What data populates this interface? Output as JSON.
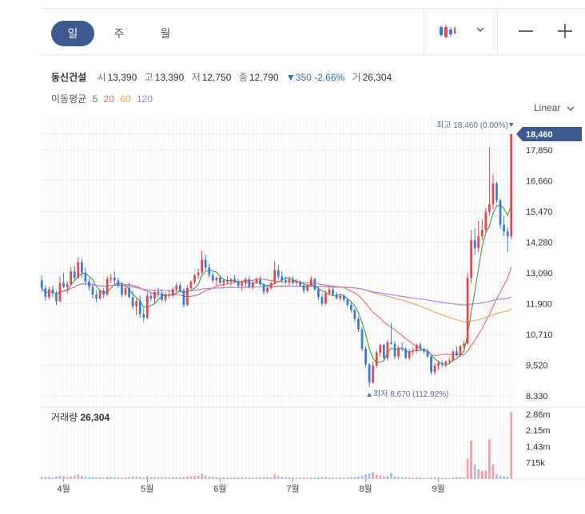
{
  "tabs": [
    {
      "label": "일"
    },
    {
      "label": "주"
    },
    {
      "label": "월"
    }
  ],
  "stock": {
    "name": "동신건설",
    "open_label": "시",
    "open": "13,390",
    "high_label": "고",
    "high": "13,390",
    "low_label": "저",
    "low": "12,750",
    "close_label": "종",
    "close": "12,790",
    "change": "▼350",
    "change_pct": "-2.66%",
    "volume_label": "거",
    "volume": "26,304"
  },
  "ma": {
    "label": "이동평균",
    "p5": "5",
    "p20": "20",
    "p60": "60",
    "p120": "120"
  },
  "scale_mode": "Linear",
  "volume_panel": {
    "title": "거래량",
    "value": "26,304"
  },
  "colors": {
    "up": "#e4464b",
    "down": "#3b7ad8",
    "ma5": "#3ea33e",
    "ma20": "#ee6a6a",
    "ma60": "#f0a55a",
    "ma120": "#a77ef2",
    "accent": "#3d5a8f",
    "last_price_bg": "#3d5a8f"
  },
  "icons": {
    "chart_type": "candle-icon",
    "dropdown": "chevron-down-icon",
    "zoom_out": "minus-icon",
    "zoom_in": "plus-icon"
  },
  "chart_data": {
    "type": "candlestick",
    "price_axis": {
      "ticks": [
        18460,
        17850,
        16660,
        15470,
        14280,
        13090,
        11900,
        10710,
        9520,
        8330
      ],
      "tick_labels": [
        "18,460",
        "17,850",
        "16,660",
        "15,470",
        "14,280",
        "13,090",
        "11,900",
        "10,710",
        "9,520",
        "8,330"
      ],
      "range": [
        8330,
        18460
      ]
    },
    "volume_axis": {
      "tick_labels": [
        "2.86m",
        "2.15m",
        "1.43m",
        "715k"
      ],
      "ticks": [
        2860000,
        2150000,
        1430000,
        715000
      ],
      "max": 3000000
    },
    "month_labels": [
      "4월",
      "5월",
      "6월",
      "7월",
      "8월",
      "9월"
    ],
    "month_start_index": [
      6,
      29,
      49,
      69,
      89,
      109
    ],
    "last_price_label": "18,460",
    "last_price": 18460,
    "max_annotation": "최고 18,460 (0.00%)",
    "min_annotation": "최저 8,670 (112.92%)",
    "max_price": 18460,
    "min_price": 8670,
    "grid": true,
    "ohlc": [
      [
        12800,
        13000,
        12350,
        12500
      ],
      [
        12500,
        12600,
        12000,
        12150
      ],
      [
        12150,
        12550,
        12050,
        12450
      ],
      [
        12450,
        12600,
        12150,
        12300
      ],
      [
        12300,
        12400,
        11850,
        12000
      ],
      [
        12000,
        12950,
        11950,
        12700
      ],
      [
        12700,
        13100,
        12500,
        12550
      ],
      [
        12550,
        12750,
        12300,
        12650
      ],
      [
        12650,
        13300,
        12600,
        13150
      ],
      [
        13150,
        13350,
        12800,
        12900
      ],
      [
        12900,
        13700,
        12850,
        13500
      ],
      [
        13500,
        13650,
        12900,
        13100
      ],
      [
        13100,
        13300,
        12600,
        12750
      ],
      [
        12750,
        12900,
        12400,
        12550
      ],
      [
        12550,
        12650,
        12100,
        12250
      ],
      [
        12250,
        12400,
        11950,
        12100
      ],
      [
        12100,
        12450,
        12050,
        12400
      ],
      [
        12400,
        12500,
        12100,
        12250
      ],
      [
        12250,
        12950,
        12200,
        12850
      ],
      [
        12850,
        13050,
        12700,
        12900
      ],
      [
        12900,
        13150,
        12650,
        12800
      ],
      [
        12800,
        12900,
        12500,
        12600
      ],
      [
        12600,
        12750,
        12150,
        12250
      ],
      [
        12250,
        12600,
        12200,
        12500
      ],
      [
        12500,
        12700,
        12100,
        12150
      ],
      [
        12150,
        12400,
        11700,
        11800
      ],
      [
        11800,
        12100,
        11450,
        12000
      ],
      [
        12000,
        12200,
        11350,
        11500
      ],
      [
        11500,
        11700,
        11200,
        11350
      ],
      [
        11350,
        12350,
        11300,
        12200
      ],
      [
        12200,
        12350,
        12000,
        12100
      ],
      [
        12100,
        12400,
        11900,
        12350
      ],
      [
        12350,
        12500,
        12150,
        12300
      ],
      [
        12300,
        12450,
        12000,
        12050
      ],
      [
        12050,
        12350,
        11950,
        12250
      ],
      [
        12250,
        12400,
        12100,
        12200
      ],
      [
        12200,
        12550,
        12150,
        12450
      ],
      [
        12450,
        12700,
        12350,
        12600
      ],
      [
        12600,
        12700,
        12350,
        12400
      ],
      [
        12400,
        12500,
        11750,
        11850
      ],
      [
        11850,
        12600,
        11800,
        12500
      ],
      [
        12500,
        12800,
        12450,
        12750
      ],
      [
        12750,
        13050,
        12650,
        13000
      ],
      [
        13000,
        13250,
        12850,
        13100
      ],
      [
        13100,
        13950,
        13050,
        13600
      ],
      [
        13600,
        13800,
        13200,
        13300
      ],
      [
        13300,
        13450,
        12900,
        13000
      ],
      [
        13000,
        13100,
        12700,
        12800
      ],
      [
        12800,
        12950,
        12600,
        12900
      ],
      [
        12900,
        13000,
        12650,
        12700
      ],
      [
        12700,
        12850,
        12550,
        12800
      ],
      [
        12800,
        12950,
        12650,
        12750
      ],
      [
        12750,
        12900,
        12600,
        12850
      ],
      [
        12850,
        13000,
        12700,
        12750
      ],
      [
        12750,
        12850,
        12500,
        12600
      ],
      [
        12600,
        12800,
        12400,
        12700
      ],
      [
        12700,
        12900,
        12550,
        12850
      ],
      [
        12850,
        12950,
        12500,
        12550
      ],
      [
        12550,
        12800,
        12450,
        12700
      ],
      [
        12700,
        12900,
        12650,
        12850
      ],
      [
        12850,
        12950,
        12600,
        12650
      ],
      [
        12650,
        12700,
        12250,
        12350
      ],
      [
        12350,
        12550,
        12300,
        12500
      ],
      [
        12500,
        12750,
        12450,
        12700
      ],
      [
        12700,
        13550,
        12650,
        13200
      ],
      [
        13200,
        13400,
        12850,
        12950
      ],
      [
        12950,
        13150,
        12700,
        12800
      ],
      [
        12800,
        12950,
        12650,
        12750
      ],
      [
        12750,
        12900,
        12600,
        12850
      ],
      [
        12850,
        12950,
        12650,
        12700
      ],
      [
        12700,
        12850,
        12600,
        12750
      ],
      [
        12750,
        12800,
        12550,
        12600
      ],
      [
        12600,
        12650,
        12300,
        12400
      ],
      [
        12400,
        12650,
        12350,
        12600
      ],
      [
        12600,
        12950,
        12550,
        12850
      ],
      [
        12850,
        12900,
        12400,
        12450
      ],
      [
        12450,
        12550,
        12050,
        12150
      ],
      [
        12150,
        12300,
        11800,
        11900
      ],
      [
        11900,
        12400,
        11850,
        12300
      ],
      [
        12300,
        12550,
        12250,
        12450
      ],
      [
        12450,
        12550,
        12200,
        12250
      ],
      [
        12250,
        12350,
        12050,
        12100
      ],
      [
        12100,
        12300,
        12000,
        12200
      ],
      [
        12200,
        12250,
        11950,
        12050
      ],
      [
        12050,
        12100,
        11750,
        11850
      ],
      [
        11850,
        11950,
        11550,
        11650
      ],
      [
        11650,
        11700,
        11200,
        11300
      ],
      [
        11300,
        11400,
        10800,
        10900
      ],
      [
        10900,
        11000,
        10050,
        10150
      ],
      [
        10150,
        10250,
        9450,
        9550
      ],
      [
        9550,
        9600,
        8670,
        8850
      ],
      [
        8850,
        9650,
        8800,
        9500
      ],
      [
        9500,
        10100,
        9400,
        10000
      ],
      [
        10000,
        10350,
        9850,
        10300
      ],
      [
        10300,
        10350,
        9700,
        9800
      ],
      [
        9800,
        10500,
        9700,
        10400
      ],
      [
        10400,
        11150,
        10300,
        10350
      ],
      [
        10350,
        10450,
        9750,
        9850
      ],
      [
        9850,
        10250,
        9750,
        10200
      ],
      [
        10200,
        10400,
        10050,
        10150
      ],
      [
        10150,
        10200,
        9750,
        9800
      ],
      [
        9800,
        10150,
        9700,
        10050
      ],
      [
        10050,
        10200,
        9900,
        10100
      ],
      [
        10100,
        10350,
        10000,
        10300
      ],
      [
        10300,
        10400,
        10100,
        10150
      ],
      [
        10150,
        10200,
        9950,
        10050
      ],
      [
        10050,
        10150,
        9800,
        9850
      ],
      [
        9850,
        9950,
        9150,
        9250
      ],
      [
        9250,
        9600,
        9150,
        9500
      ],
      [
        9500,
        9700,
        9350,
        9600
      ],
      [
        9600,
        9700,
        9450,
        9550
      ],
      [
        9550,
        9700,
        9450,
        9650
      ],
      [
        9650,
        9800,
        9550,
        9700
      ],
      [
        9700,
        10100,
        9650,
        10050
      ],
      [
        10050,
        10250,
        9850,
        9900
      ],
      [
        9900,
        10300,
        9850,
        10250
      ],
      [
        10250,
        10450,
        10150,
        10350
      ],
      [
        10350,
        13100,
        10300,
        12900
      ],
      [
        12900,
        14750,
        12700,
        14350
      ],
      [
        14350,
        14800,
        13800,
        14050
      ],
      [
        14050,
        15100,
        13900,
        14500
      ],
      [
        14500,
        15150,
        14350,
        14750
      ],
      [
        14750,
        15600,
        14650,
        15450
      ],
      [
        15450,
        17950,
        15300,
        15750
      ],
      [
        15750,
        16900,
        15550,
        16550
      ],
      [
        16550,
        16600,
        15800,
        15900
      ],
      [
        15900,
        15950,
        14800,
        14950
      ],
      [
        14950,
        15300,
        14500,
        14700
      ],
      [
        14700,
        14850,
        13900,
        14500
      ],
      [
        14500,
        18460,
        14400,
        18460
      ]
    ],
    "volume": [
      80000,
      90000,
      70000,
      60000,
      120000,
      150000,
      130000,
      90000,
      110000,
      160000,
      200000,
      140000,
      100000,
      80000,
      90000,
      70000,
      70000,
      60000,
      100000,
      80000,
      90000,
      70000,
      60000,
      70000,
      80000,
      110000,
      100000,
      90000,
      70000,
      130000,
      90000,
      80000,
      60000,
      70000,
      70000,
      60000,
      80000,
      70000,
      60000,
      80000,
      100000,
      110000,
      130000,
      140000,
      220000,
      150000,
      100000,
      90000,
      70000,
      60000,
      70000,
      60000,
      60000,
      60000,
      70000,
      60000,
      60000,
      70000,
      60000,
      60000,
      70000,
      80000,
      70000,
      60000,
      200000,
      120000,
      90000,
      70000,
      60000,
      60000,
      50000,
      50000,
      60000,
      50000,
      60000,
      60000,
      70000,
      80000,
      70000,
      60000,
      60000,
      50000,
      50000,
      60000,
      60000,
      80000,
      90000,
      110000,
      140000,
      200000,
      250000,
      300000,
      180000,
      140000,
      110000,
      120000,
      260000,
      110000,
      80000,
      60000,
      70000,
      60000,
      50000,
      60000,
      60000,
      50000,
      50000,
      70000,
      60000,
      50000,
      40000,
      40000,
      40000,
      60000,
      70000,
      70000,
      60000,
      900000,
      1700000,
      650000,
      420000,
      350000,
      380000,
      1750000,
      650000,
      220000,
      130000,
      120000,
      110000,
      2950000
    ],
    "ma_series": [
      {
        "name": "5",
        "period": 5
      },
      {
        "name": "20",
        "period": 20
      },
      {
        "name": "60",
        "period": 60
      },
      {
        "name": "120",
        "period": 120
      }
    ]
  }
}
